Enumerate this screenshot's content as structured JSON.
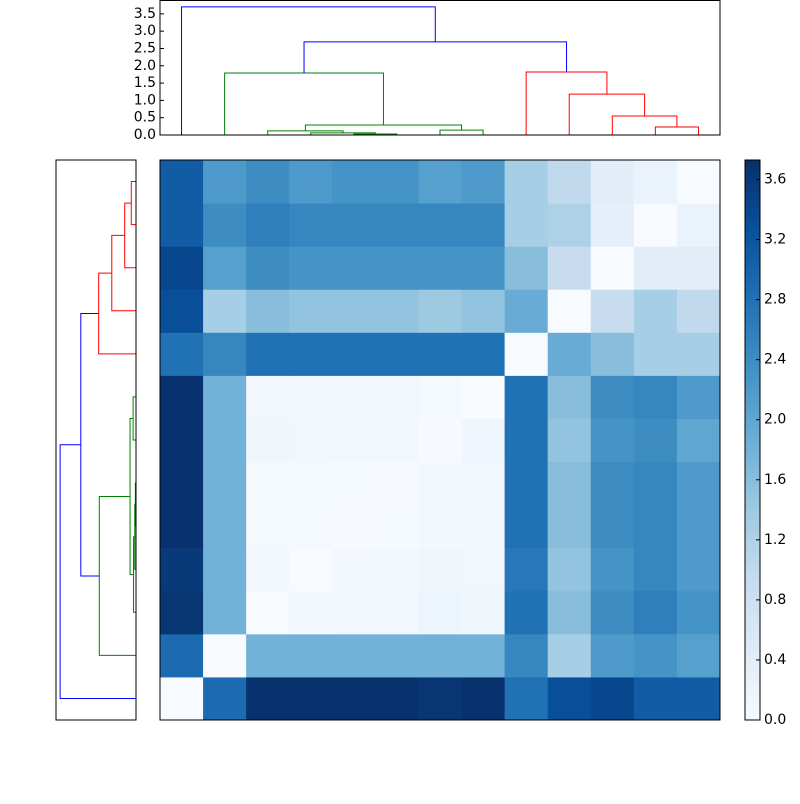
{
  "chart_data": {
    "type": "clustermap",
    "clim": [
      0,
      3.73
    ],
    "colormap": [
      "#f7fbff",
      "#deebf7",
      "#c6dbef",
      "#9ecae1",
      "#6baed6",
      "#4292c6",
      "#2171b5",
      "#08519c",
      "#08306b"
    ],
    "colorbar_ticks": [
      {
        "value": 0,
        "label": "0.0"
      },
      {
        "value": 0.4,
        "label": "0.4"
      },
      {
        "value": 0.8,
        "label": "0.8"
      },
      {
        "value": 1.2,
        "label": "1.2"
      },
      {
        "value": 1.6,
        "label": "1.6"
      },
      {
        "value": 2.0,
        "label": "2.0"
      },
      {
        "value": 2.4,
        "label": "2.4"
      },
      {
        "value": 2.8,
        "label": "2.8"
      },
      {
        "value": 3.2,
        "label": "3.2"
      },
      {
        "value": 3.6,
        "label": "3.6"
      }
    ],
    "matrix": [
      [
        0,
        2.9,
        3.7,
        3.7,
        3.7,
        3.7,
        3.65,
        3.7,
        2.8,
        3.3,
        3.4,
        3.1,
        3.1
      ],
      [
        2.9,
        0,
        1.8,
        1.8,
        1.8,
        1.8,
        1.8,
        1.8,
        2.5,
        1.3,
        2.2,
        2.3,
        2.1
      ],
      [
        3.65,
        1.8,
        0,
        0.1,
        0.12,
        0.12,
        0.2,
        0.15,
        2.8,
        1.6,
        2.4,
        2.6,
        2.3
      ],
      [
        3.6,
        1.8,
        0.1,
        0,
        0.08,
        0.08,
        0.15,
        0.12,
        2.7,
        1.5,
        2.3,
        2.5,
        2.2
      ],
      [
        3.7,
        1.8,
        0.05,
        0.05,
        0.02,
        0.03,
        0.1,
        0.1,
        2.8,
        1.6,
        2.4,
        2.5,
        2.2
      ],
      [
        3.7,
        1.8,
        0.05,
        0.06,
        0.03,
        0.02,
        0.1,
        0.1,
        2.8,
        1.6,
        2.4,
        2.5,
        2.2
      ],
      [
        3.7,
        1.8,
        0.15,
        0.12,
        0.12,
        0.12,
        0.02,
        0.14,
        2.8,
        1.5,
        2.3,
        2.4,
        2.0
      ],
      [
        3.7,
        1.8,
        0.12,
        0.1,
        0.1,
        0.12,
        0.06,
        0,
        2.8,
        1.6,
        2.4,
        2.5,
        2.2
      ],
      [
        2.8,
        2.5,
        2.8,
        2.8,
        2.8,
        2.8,
        2.8,
        2.8,
        0,
        1.9,
        1.6,
        1.3,
        1.3
      ],
      [
        3.3,
        1.3,
        1.6,
        1.5,
        1.5,
        1.5,
        1.4,
        1.5,
        1.9,
        0,
        0.9,
        1.3,
        1.0
      ],
      [
        3.4,
        2.1,
        2.4,
        2.3,
        2.3,
        2.3,
        2.3,
        2.3,
        1.6,
        0.9,
        0,
        0.4,
        0.4
      ],
      [
        3.1,
        2.4,
        2.6,
        2.5,
        2.5,
        2.5,
        2.5,
        2.5,
        1.3,
        1.2,
        0.35,
        0,
        0.25
      ],
      [
        3.1,
        2.2,
        2.4,
        2.2,
        2.3,
        2.3,
        2.1,
        2.2,
        1.3,
        1.0,
        0.4,
        0.25,
        0
      ]
    ],
    "dendrogram": {
      "lim": [
        0,
        3.9
      ],
      "yticks": [
        {
          "value": 0,
          "label": "0.0"
        },
        {
          "value": 0.5,
          "label": "0.5"
        },
        {
          "value": 1.0,
          "label": "1.0"
        },
        {
          "value": 1.5,
          "label": "1.5"
        },
        {
          "value": 2.0,
          "label": "2.0"
        },
        {
          "value": 2.5,
          "label": "2.5"
        },
        {
          "value": 3.0,
          "label": "3.0"
        },
        {
          "value": 3.5,
          "label": "3.5"
        }
      ],
      "links": [
        {
          "icoord": [
            4,
            4,
            5,
            5
          ],
          "dcoord": [
            0,
            0.03,
            0.03,
            0
          ],
          "color": "#008000"
        },
        {
          "icoord": [
            3,
            3,
            4.5,
            4.5
          ],
          "dcoord": [
            0,
            0.06,
            0.06,
            0.03
          ],
          "color": "#008000"
        },
        {
          "icoord": [
            2,
            2,
            3.75,
            3.75
          ],
          "dcoord": [
            0,
            0.12,
            0.12,
            0.06
          ],
          "color": "#008000"
        },
        {
          "icoord": [
            6,
            6,
            7,
            7
          ],
          "dcoord": [
            0,
            0.14,
            0.14,
            0
          ],
          "color": "#008000"
        },
        {
          "icoord": [
            2.875,
            2.875,
            6.5,
            6.5
          ],
          "dcoord": [
            0.12,
            0.29,
            0.29,
            0.14
          ],
          "color": "#008000"
        },
        {
          "icoord": [
            1,
            1,
            4.6875,
            4.6875
          ],
          "dcoord": [
            0,
            1.79,
            1.79,
            0.29
          ],
          "color": "#008000"
        },
        {
          "icoord": [
            11,
            11,
            12,
            12
          ],
          "dcoord": [
            0,
            0.23,
            0.23,
            0
          ],
          "color": "#ff0000"
        },
        {
          "icoord": [
            10,
            10,
            11.5,
            11.5
          ],
          "dcoord": [
            0,
            0.55,
            0.55,
            0.23
          ],
          "color": "#ff0000"
        },
        {
          "icoord": [
            9,
            9,
            10.75,
            10.75
          ],
          "dcoord": [
            0,
            1.18,
            1.18,
            0.55
          ],
          "color": "#ff0000"
        },
        {
          "icoord": [
            8,
            8,
            9.875,
            9.875
          ],
          "dcoord": [
            0,
            1.82,
            1.82,
            1.18
          ],
          "color": "#ff0000"
        },
        {
          "icoord": [
            2.84375,
            2.84375,
            8.9375,
            8.9375
          ],
          "dcoord": [
            1.79,
            2.69,
            2.69,
            1.82
          ],
          "color": "#0000ff"
        },
        {
          "icoord": [
            0,
            0,
            5.890625,
            5.890625
          ],
          "dcoord": [
            0,
            3.7,
            3.7,
            2.69
          ],
          "color": "#0000ff"
        }
      ]
    }
  }
}
